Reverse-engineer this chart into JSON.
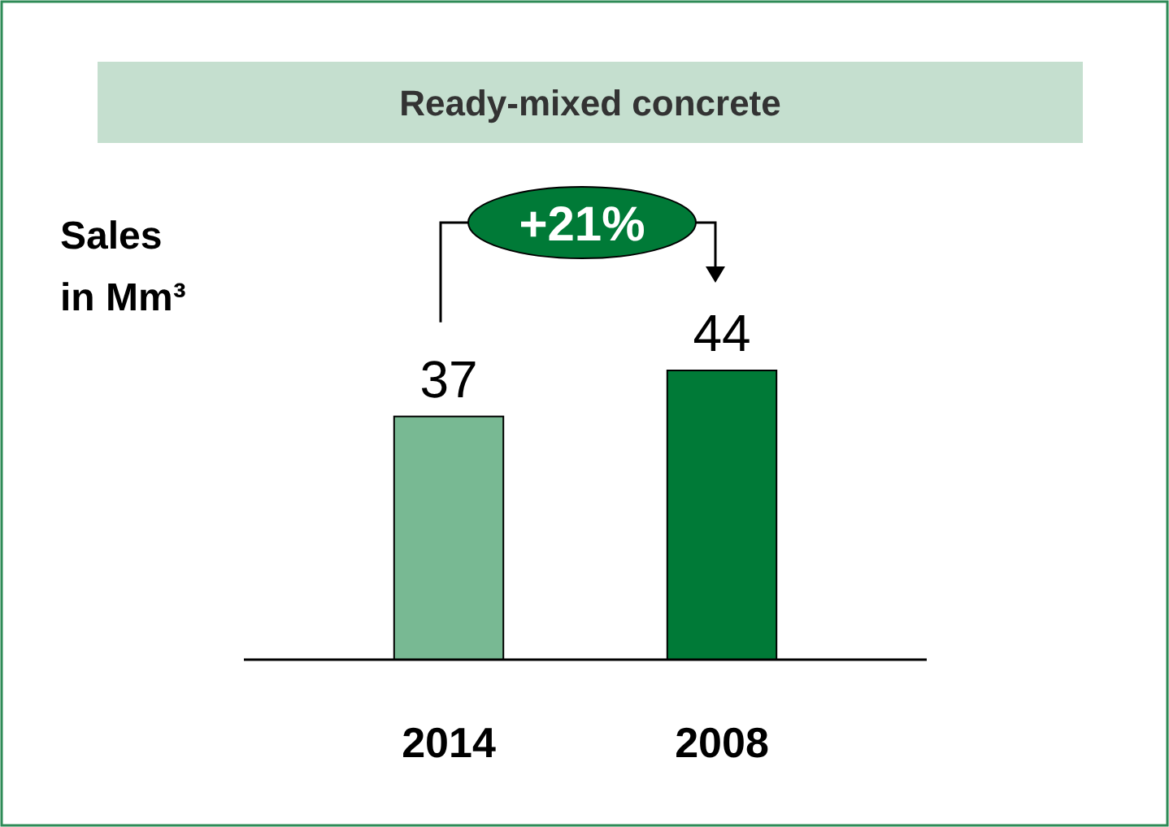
{
  "chart_data": {
    "type": "bar",
    "title": "Ready-mixed concrete",
    "ylabel": "Sales in Mm³",
    "categories": [
      "2014",
      "2008"
    ],
    "values": [
      37,
      44
    ],
    "colors": [
      "#78b993",
      "#007a37"
    ],
    "data_labels": true,
    "annotations": [
      "+21%"
    ]
  }
}
